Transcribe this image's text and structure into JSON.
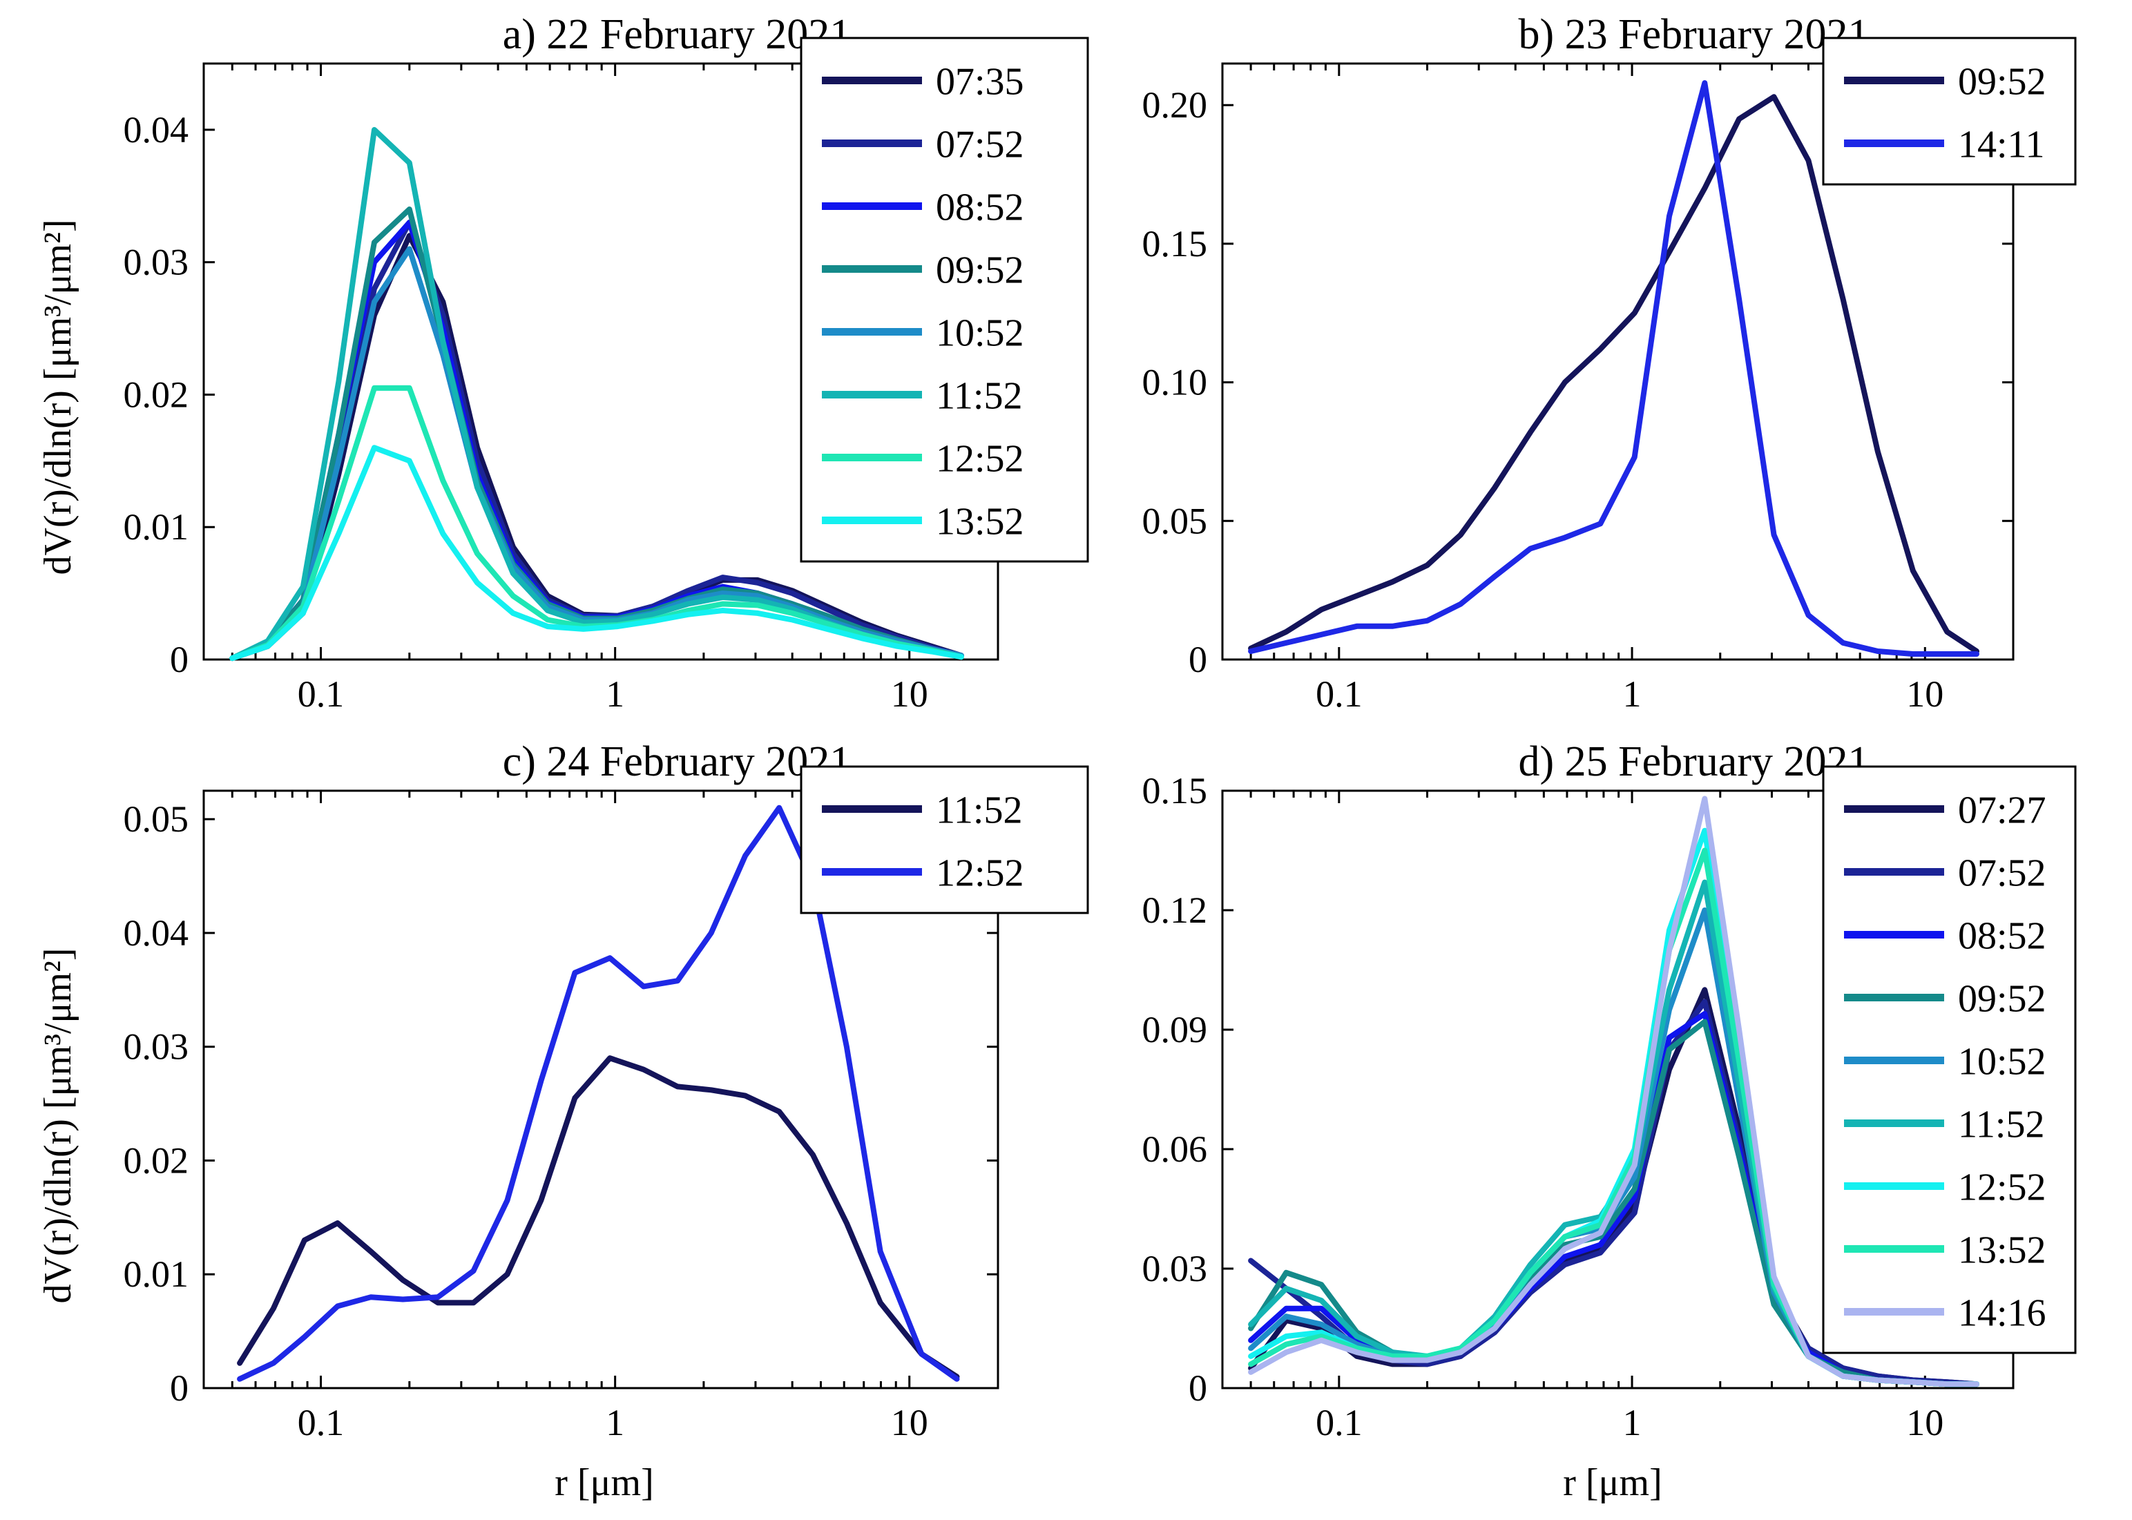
{
  "figure": {
    "ylabel": "dV(r)/dln(r) [μm³/μm²]",
    "xlabel": "r [μm]"
  },
  "chart_data": [
    {
      "type": "line",
      "title": "a) 22 February 2021",
      "xscale": "log",
      "xlim": [
        0.04,
        20
      ],
      "ylim": [
        0,
        0.045
      ],
      "yticks": [
        0,
        0.01,
        0.02,
        0.03,
        0.04
      ],
      "ytick_labels": [
        "0",
        "0.01",
        "0.02",
        "0.03",
        "0.04"
      ],
      "xticks": [
        0.1,
        1,
        10
      ],
      "xtick_labels": [
        "0.1",
        "1",
        "10"
      ],
      "legend_position": "top-right",
      "x": [
        0.05,
        0.066,
        0.087,
        0.115,
        0.152,
        0.2,
        0.26,
        0.34,
        0.45,
        0.59,
        0.78,
        1.02,
        1.34,
        1.77,
        2.32,
        3.05,
        4.0,
        5.25,
        6.9,
        9.1,
        11.9,
        15.0
      ],
      "series": [
        {
          "name": "07:35",
          "color": "#14145a",
          "values": [
            0.0001,
            0.001,
            0.0035,
            0.014,
            0.026,
            0.032,
            0.027,
            0.016,
            0.0085,
            0.0048,
            0.0034,
            0.0033,
            0.004,
            0.005,
            0.006,
            0.006,
            0.0052,
            0.004,
            0.0028,
            0.0018,
            0.001,
            0.0003
          ]
        },
        {
          "name": "07:52",
          "color": "#1c2496",
          "values": [
            0.0001,
            0.0012,
            0.004,
            0.015,
            0.028,
            0.033,
            0.026,
            0.015,
            0.008,
            0.0045,
            0.0033,
            0.0033,
            0.004,
            0.0052,
            0.0062,
            0.0058,
            0.005,
            0.0038,
            0.0026,
            0.0017,
            0.0009,
            0.0003
          ]
        },
        {
          "name": "08:52",
          "color": "#0f14ee",
          "values": [
            0.0001,
            0.0013,
            0.0045,
            0.017,
            0.03,
            0.033,
            0.025,
            0.014,
            0.0075,
            0.0043,
            0.0032,
            0.0032,
            0.0038,
            0.0048,
            0.0055,
            0.005,
            0.0042,
            0.0032,
            0.0022,
            0.0014,
            0.0008,
            0.0003
          ]
        },
        {
          "name": "09:52",
          "color": "#148a8a",
          "values": [
            0.0001,
            0.0012,
            0.0045,
            0.017,
            0.0315,
            0.034,
            0.024,
            0.0135,
            0.0072,
            0.0042,
            0.0031,
            0.0031,
            0.0037,
            0.0046,
            0.0053,
            0.005,
            0.0042,
            0.0033,
            0.0023,
            0.0015,
            0.0008,
            0.0003
          ]
        },
        {
          "name": "10:52",
          "color": "#1e8cc8",
          "values": [
            0.0001,
            0.0011,
            0.004,
            0.015,
            0.027,
            0.031,
            0.023,
            0.013,
            0.007,
            0.004,
            0.003,
            0.003,
            0.0035,
            0.0045,
            0.005,
            0.0048,
            0.004,
            0.003,
            0.0021,
            0.0014,
            0.0008,
            0.0003
          ]
        },
        {
          "name": "11:52",
          "color": "#14b4b4",
          "values": [
            0.0001,
            0.0014,
            0.0055,
            0.021,
            0.04,
            0.0375,
            0.024,
            0.013,
            0.0065,
            0.0037,
            0.0028,
            0.0029,
            0.0034,
            0.0042,
            0.0047,
            0.0045,
            0.0038,
            0.0028,
            0.0019,
            0.0012,
            0.0007,
            0.0002
          ]
        },
        {
          "name": "12:52",
          "color": "#1ee6b4",
          "values": [
            0.0001,
            0.0011,
            0.004,
            0.012,
            0.0205,
            0.0205,
            0.0135,
            0.008,
            0.0048,
            0.003,
            0.0025,
            0.0026,
            0.003,
            0.0037,
            0.0042,
            0.0041,
            0.0035,
            0.0027,
            0.0019,
            0.0012,
            0.0007,
            0.0002
          ]
        },
        {
          "name": "13:52",
          "color": "#14f0f0",
          "values": [
            0.0001,
            0.001,
            0.0035,
            0.0095,
            0.016,
            0.015,
            0.0095,
            0.0058,
            0.0035,
            0.0025,
            0.0023,
            0.0025,
            0.0029,
            0.0034,
            0.0037,
            0.0035,
            0.003,
            0.0023,
            0.0016,
            0.001,
            0.0006,
            0.0002
          ]
        }
      ]
    },
    {
      "type": "line",
      "title": "b) 23 February 2021",
      "xscale": "log",
      "xlim": [
        0.04,
        20
      ],
      "ylim": [
        0,
        0.215
      ],
      "yticks": [
        0,
        0.05,
        0.1,
        0.15,
        0.2
      ],
      "ytick_labels": [
        "0",
        "0.05",
        "0.10",
        "0.15",
        "0.20"
      ],
      "xticks": [
        0.1,
        1,
        10
      ],
      "xtick_labels": [
        "0.1",
        "1",
        "10"
      ],
      "legend_position": "top-right",
      "x": [
        0.05,
        0.066,
        0.087,
        0.115,
        0.152,
        0.2,
        0.26,
        0.34,
        0.45,
        0.59,
        0.78,
        1.02,
        1.34,
        1.77,
        2.32,
        3.05,
        4.0,
        5.25,
        6.9,
        9.1,
        11.9,
        15.0
      ],
      "series": [
        {
          "name": "09:52",
          "color": "#14145a",
          "values": [
            0.004,
            0.01,
            0.018,
            0.023,
            0.028,
            0.034,
            0.045,
            0.062,
            0.082,
            0.1,
            0.112,
            0.125,
            0.147,
            0.17,
            0.195,
            0.203,
            0.18,
            0.13,
            0.075,
            0.032,
            0.01,
            0.003
          ]
        },
        {
          "name": "14:11",
          "color": "#1e28e6",
          "values": [
            0.003,
            0.006,
            0.009,
            0.012,
            0.012,
            0.014,
            0.02,
            0.03,
            0.04,
            0.044,
            0.049,
            0.073,
            0.16,
            0.208,
            0.13,
            0.045,
            0.016,
            0.006,
            0.003,
            0.002,
            0.002,
            0.002
          ]
        }
      ]
    },
    {
      "type": "line",
      "title": "c) 24 February 2021",
      "xscale": "log",
      "xlim": [
        0.04,
        20
      ],
      "ylim": [
        0,
        0.0525
      ],
      "yticks": [
        0,
        0.01,
        0.02,
        0.03,
        0.04,
        0.05
      ],
      "ytick_labels": [
        "0",
        "0.01",
        "0.02",
        "0.03",
        "0.04",
        "0.05"
      ],
      "xticks": [
        0.1,
        1,
        10
      ],
      "xtick_labels": [
        "0.1",
        "1",
        "10"
      ],
      "legend_position": "top-right",
      "x": [
        0.053,
        0.069,
        0.088,
        0.114,
        0.148,
        0.19,
        0.25,
        0.33,
        0.43,
        0.56,
        0.73,
        0.96,
        1.25,
        1.63,
        2.12,
        2.77,
        3.61,
        4.7,
        6.12,
        7.97,
        11.0,
        14.5
      ],
      "series": [
        {
          "name": "11:52",
          "color": "#14145a",
          "values": [
            0.0022,
            0.007,
            0.013,
            0.0145,
            0.012,
            0.0095,
            0.0075,
            0.0075,
            0.01,
            0.0165,
            0.0255,
            0.029,
            0.028,
            0.0265,
            0.0262,
            0.0257,
            0.0243,
            0.0205,
            0.0145,
            0.0075,
            0.003,
            0.001
          ]
        },
        {
          "name": "12:52",
          "color": "#1e28e6",
          "values": [
            0.0008,
            0.0022,
            0.0045,
            0.0072,
            0.008,
            0.0078,
            0.008,
            0.0103,
            0.0165,
            0.027,
            0.0365,
            0.0378,
            0.0353,
            0.0358,
            0.04,
            0.0468,
            0.051,
            0.0445,
            0.03,
            0.012,
            0.003,
            0.0008
          ]
        }
      ]
    },
    {
      "type": "line",
      "title": "d) 25 February 2021",
      "xscale": "log",
      "xlim": [
        0.04,
        20
      ],
      "ylim": [
        0,
        0.15
      ],
      "yticks": [
        0,
        0.03,
        0.06,
        0.09,
        0.12,
        0.15
      ],
      "ytick_labels": [
        "0",
        "0.03",
        "0.06",
        "0.09",
        "0.12",
        "0.15"
      ],
      "xticks": [
        0.1,
        1,
        10
      ],
      "xtick_labels": [
        "0.1",
        "1",
        "10"
      ],
      "legend_position": "top-right",
      "x": [
        0.05,
        0.066,
        0.087,
        0.115,
        0.152,
        0.2,
        0.26,
        0.34,
        0.45,
        0.59,
        0.78,
        1.02,
        1.34,
        1.77,
        2.32,
        3.05,
        4.0,
        5.25,
        6.9,
        9.1,
        11.9,
        15.0
      ],
      "series": [
        {
          "name": "07:27",
          "color": "#14145a",
          "values": [
            0.005,
            0.017,
            0.015,
            0.008,
            0.006,
            0.006,
            0.008,
            0.015,
            0.025,
            0.032,
            0.035,
            0.046,
            0.08,
            0.1,
            0.065,
            0.025,
            0.01,
            0.005,
            0.003,
            0.002,
            0.0015,
            0.001
          ]
        },
        {
          "name": "07:52",
          "color": "#1c2496",
          "values": [
            0.032,
            0.025,
            0.018,
            0.01,
            0.007,
            0.006,
            0.008,
            0.014,
            0.024,
            0.031,
            0.034,
            0.044,
            0.085,
            0.097,
            0.062,
            0.024,
            0.01,
            0.005,
            0.003,
            0.002,
            0.0015,
            0.001
          ]
        },
        {
          "name": "08:52",
          "color": "#0f14ee",
          "values": [
            0.012,
            0.02,
            0.02,
            0.012,
            0.008,
            0.007,
            0.009,
            0.015,
            0.025,
            0.033,
            0.036,
            0.048,
            0.088,
            0.094,
            0.06,
            0.022,
            0.009,
            0.004,
            0.002,
            0.0015,
            0.001,
            0.001
          ]
        },
        {
          "name": "09:52",
          "color": "#148a8a",
          "values": [
            0.015,
            0.029,
            0.026,
            0.014,
            0.009,
            0.007,
            0.009,
            0.016,
            0.028,
            0.036,
            0.038,
            0.05,
            0.085,
            0.092,
            0.058,
            0.021,
            0.008,
            0.004,
            0.002,
            0.0015,
            0.001,
            0.001
          ]
        },
        {
          "name": "10:52",
          "color": "#1e8cc8",
          "values": [
            0.01,
            0.018,
            0.016,
            0.011,
            0.008,
            0.007,
            0.009,
            0.016,
            0.029,
            0.038,
            0.04,
            0.053,
            0.095,
            0.12,
            0.072,
            0.024,
            0.008,
            0.003,
            0.002,
            0.0015,
            0.001,
            0.001
          ]
        },
        {
          "name": "11:52",
          "color": "#14b4b4",
          "values": [
            0.016,
            0.025,
            0.022,
            0.013,
            0.009,
            0.008,
            0.01,
            0.018,
            0.031,
            0.041,
            0.043,
            0.056,
            0.1,
            0.127,
            0.076,
            0.025,
            0.008,
            0.003,
            0.002,
            0.0015,
            0.001,
            0.001
          ]
        },
        {
          "name": "12:52",
          "color": "#14f0f0",
          "values": [
            0.008,
            0.013,
            0.014,
            0.01,
            0.008,
            0.008,
            0.01,
            0.017,
            0.029,
            0.038,
            0.042,
            0.06,
            0.115,
            0.14,
            0.085,
            0.027,
            0.008,
            0.003,
            0.002,
            0.0015,
            0.001,
            0.001
          ]
        },
        {
          "name": "13:52",
          "color": "#1ee6b4",
          "values": [
            0.006,
            0.011,
            0.013,
            0.01,
            0.008,
            0.008,
            0.01,
            0.017,
            0.029,
            0.038,
            0.041,
            0.058,
            0.11,
            0.135,
            0.082,
            0.026,
            0.008,
            0.003,
            0.002,
            0.0015,
            0.001,
            0.001
          ]
        },
        {
          "name": "14:16",
          "color": "#aab4f0",
          "values": [
            0.004,
            0.009,
            0.012,
            0.009,
            0.007,
            0.007,
            0.009,
            0.015,
            0.026,
            0.035,
            0.039,
            0.056,
            0.11,
            0.148,
            0.09,
            0.028,
            0.008,
            0.003,
            0.002,
            0.0015,
            0.001,
            0.001
          ]
        }
      ]
    }
  ]
}
